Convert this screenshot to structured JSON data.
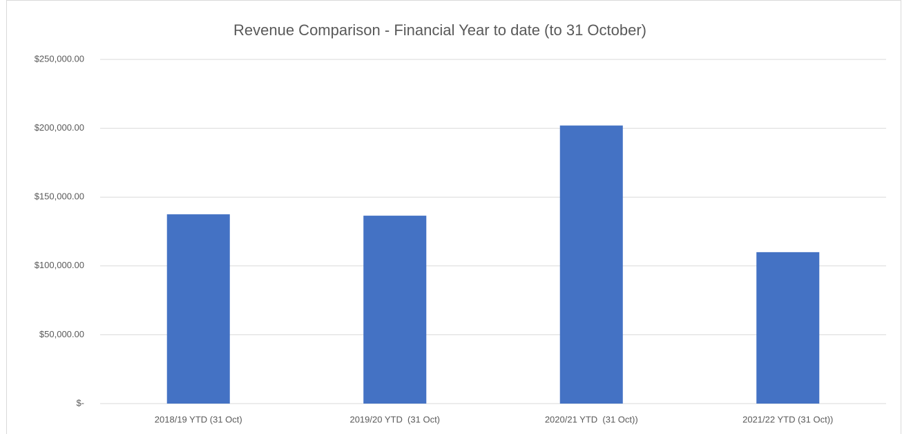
{
  "chart_data": {
    "type": "bar",
    "title": "Revenue Comparison - Financial Year to date (to 31 October)",
    "categories": [
      "2018/19 YTD (31 Oct)",
      "2019/20 YTD  (31 Oct)",
      "2020/21 YTD  (31 Oct))",
      "2021/22 YTD (31 Oct))"
    ],
    "values": [
      137500,
      136500,
      202000,
      110000
    ],
    "color": "#4472c4",
    "ylim": [
      0,
      250000
    ],
    "yticks": [
      {
        "value": 0,
        "label": "$-"
      },
      {
        "value": 50000,
        "label": "$50,000.00"
      },
      {
        "value": 100000,
        "label": "$100,000.00"
      },
      {
        "value": 150000,
        "label": "$150,000.00"
      },
      {
        "value": 200000,
        "label": "$200,000.00"
      },
      {
        "value": 250000,
        "label": "$250,000.00"
      }
    ],
    "grid": true
  }
}
